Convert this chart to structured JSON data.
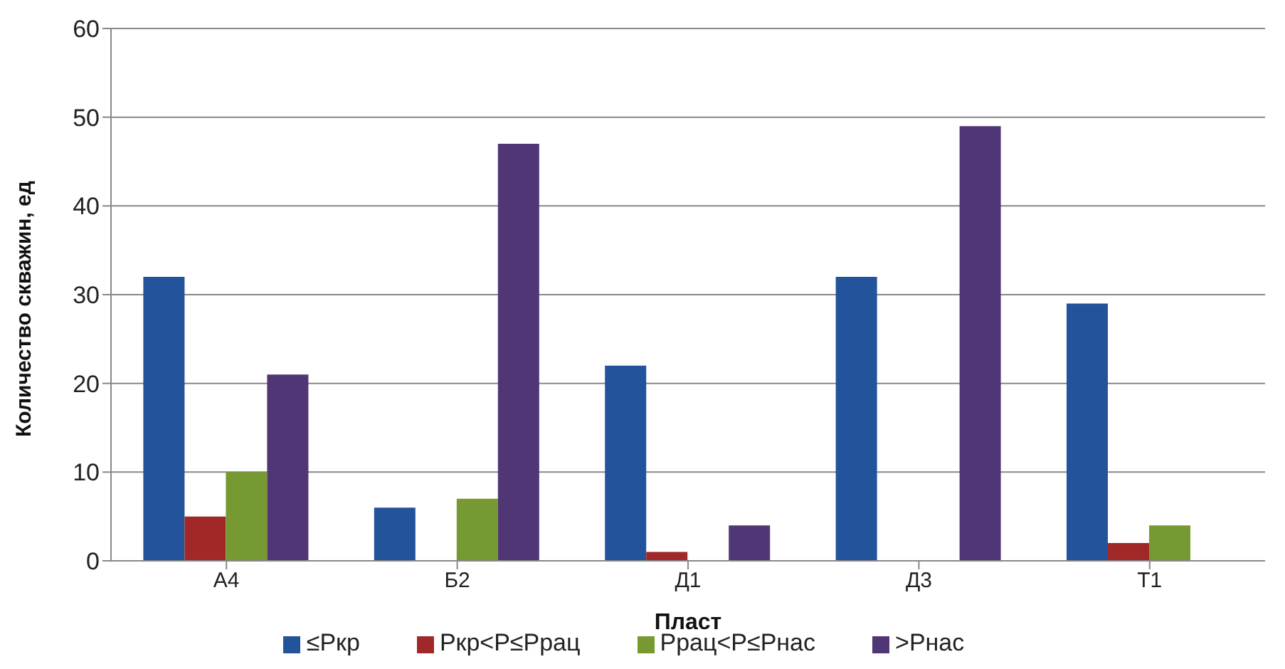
{
  "chart_data": {
    "type": "bar",
    "xlabel": "Пласт",
    "ylabel": "Количество скважин, ед",
    "categories": [
      "А4",
      "Б2",
      "Д1",
      "Д3",
      "Т1"
    ],
    "series": [
      {
        "name": "≤Pкр",
        "color": "#23539b",
        "values": [
          32,
          6,
          22,
          32,
          29
        ]
      },
      {
        "name": "Pкр<P≤Pрац",
        "color": "#a12828",
        "values": [
          5,
          0,
          1,
          0,
          2
        ]
      },
      {
        "name": "Pрац<P≤Pнас",
        "color": "#769a31",
        "values": [
          10,
          7,
          0,
          0,
          4
        ]
      },
      {
        "name": ">Pнас",
        "color": "#513675",
        "values": [
          21,
          47,
          4,
          49,
          0
        ]
      }
    ],
    "ylim": [
      0,
      60
    ],
    "yticks": [
      0,
      10,
      20,
      30,
      40,
      50,
      60
    ],
    "grid": "y",
    "legend": "bottom"
  }
}
